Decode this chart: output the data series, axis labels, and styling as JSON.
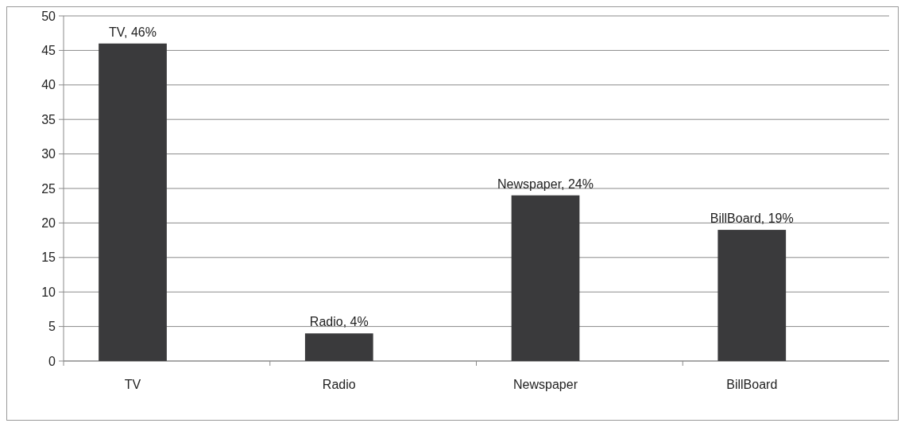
{
  "chart_data": {
    "type": "bar",
    "categories": [
      "TV",
      "Radio",
      "Newspaper",
      "BillBoard"
    ],
    "values": [
      46,
      4,
      24,
      19
    ],
    "value_labels": [
      "TV, 46%",
      "Radio, 4%",
      "Newspaper, 24%",
      "BillBoard, 19%"
    ],
    "color": "#3a3a3c",
    "ylim": [
      0,
      50
    ],
    "yticks": [
      0,
      5,
      10,
      15,
      20,
      25,
      30,
      35,
      40,
      45,
      50
    ],
    "grid": "y"
  }
}
